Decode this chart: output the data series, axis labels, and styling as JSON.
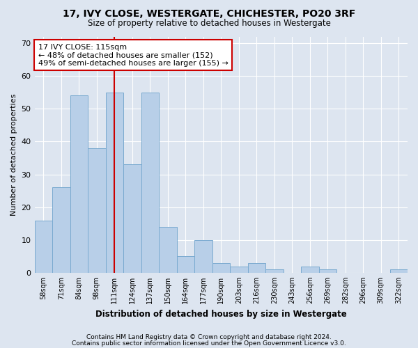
{
  "title1": "17, IVY CLOSE, WESTERGATE, CHICHESTER, PO20 3RF",
  "title2": "Size of property relative to detached houses in Westergate",
  "xlabel": "Distribution of detached houses by size in Westergate",
  "ylabel": "Number of detached properties",
  "categories": [
    "58sqm",
    "71sqm",
    "84sqm",
    "98sqm",
    "111sqm",
    "124sqm",
    "137sqm",
    "150sqm",
    "164sqm",
    "177sqm",
    "190sqm",
    "203sqm",
    "216sqm",
    "230sqm",
    "243sqm",
    "256sqm",
    "269sqm",
    "282sqm",
    "296sqm",
    "309sqm",
    "322sqm"
  ],
  "values": [
    16,
    26,
    54,
    38,
    55,
    33,
    55,
    14,
    5,
    10,
    3,
    2,
    3,
    1,
    0,
    2,
    1,
    0,
    0,
    0,
    1
  ],
  "bar_color": "#b8cfe8",
  "bar_edge_color": "#7aaad0",
  "vline_x_index": 4,
  "vline_color": "#cc0000",
  "annotation_text": "17 IVY CLOSE: 115sqm\n← 48% of detached houses are smaller (152)\n49% of semi-detached houses are larger (155) →",
  "annotation_box_color": "#ffffff",
  "annotation_box_edgecolor": "#cc0000",
  "ylim": [
    0,
    72
  ],
  "yticks": [
    0,
    10,
    20,
    30,
    40,
    50,
    60,
    70
  ],
  "footer1": "Contains HM Land Registry data © Crown copyright and database right 2024.",
  "footer2": "Contains public sector information licensed under the Open Government Licence v3.0.",
  "background_color": "#dde5f0",
  "plot_bg_color": "#dde5f0"
}
